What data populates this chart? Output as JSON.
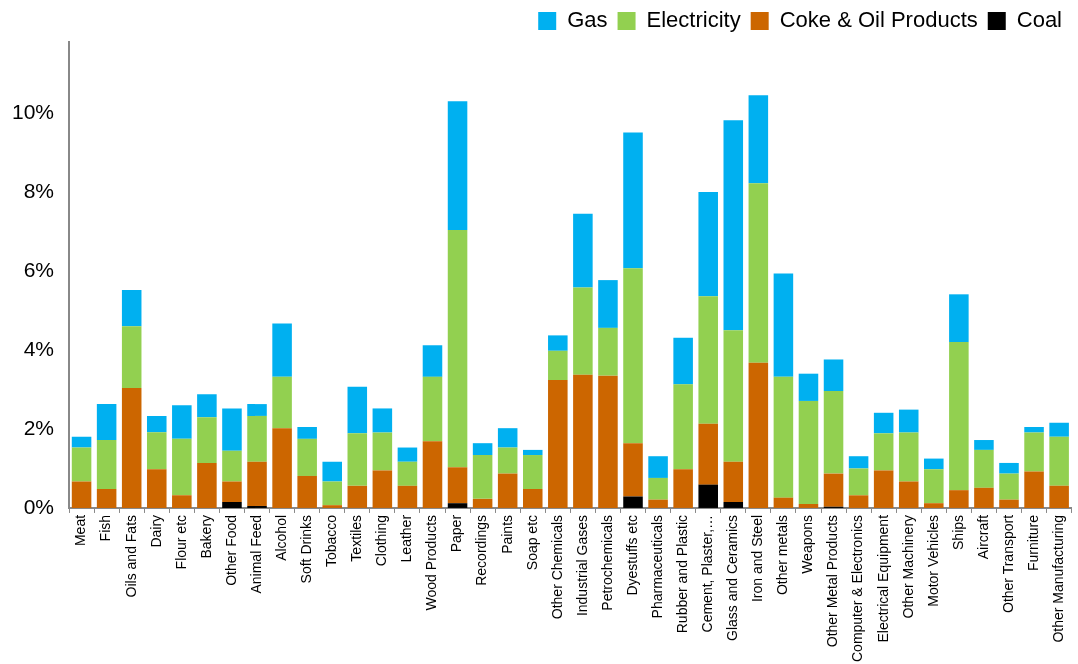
{
  "chart_data": {
    "type": "bar",
    "stacked": true,
    "legend": "top",
    "grid": false,
    "categories": [
      "Meat",
      "Fish",
      "Oils and Fats",
      "Dairy",
      "Flour etc",
      "Bakery",
      "Other Food",
      "Animal Feed",
      "Alcohol",
      "Soft Drinks",
      "Tobacco",
      "Textiles",
      "Clothing",
      "Leather",
      "Wood Products",
      "Paper",
      "Recordings",
      "Paints",
      "Soap etc",
      "Other Chemicals",
      "Industrial Gases",
      "Petrochemicals",
      "Dyestuffs etc",
      "Pharmaceuticals",
      "Rubber and Plastic",
      "Cement, Plaster,…",
      "Glass and Ceramics",
      "Iron and Steel",
      "Other metals",
      "Weapons",
      "Other Metal Products",
      "Computer & Electronics",
      "Electrical Equipment",
      "Other Machinery",
      "Motor Vehicles",
      "Ships",
      "Aircraft",
      "Other Transport",
      "Furniture",
      "Other Manufacturing"
    ],
    "ylim": [
      0,
      11.8
    ],
    "yticks": [
      {
        "value": 0,
        "label": "0%"
      },
      {
        "value": 2,
        "label": "2%"
      },
      {
        "value": 4,
        "label": "4%"
      },
      {
        "value": 6,
        "label": "6%"
      },
      {
        "value": 8,
        "label": "8%"
      },
      {
        "value": 10,
        "label": "10%"
      }
    ],
    "series": [
      {
        "name": "Coal",
        "color": "#000000",
        "values": [
          0,
          0,
          0,
          0,
          0,
          0,
          0.15,
          0.05,
          0,
          0,
          0,
          0,
          0,
          0,
          0,
          0.12,
          0,
          0,
          0,
          0,
          0,
          0,
          0.29,
          0,
          0,
          0.59,
          0.15,
          0,
          0,
          0,
          0.03,
          0,
          0,
          0,
          0,
          0,
          0,
          0,
          0,
          0
        ]
      },
      {
        "name": "Coke & Oil Products",
        "color": "#cc6600",
        "values": [
          0.67,
          0.48,
          3.04,
          0.98,
          0.32,
          1.14,
          0.52,
          1.12,
          2.02,
          0.81,
          0.07,
          0.56,
          0.95,
          0.56,
          1.69,
          0.91,
          0.23,
          0.87,
          0.48,
          3.24,
          3.37,
          3.35,
          1.35,
          0.21,
          0.98,
          1.54,
          1.02,
          3.68,
          0.26,
          0.1,
          0.84,
          0.32,
          0.95,
          0.67,
          0.12,
          0.45,
          0.51,
          0.21,
          0.92,
          0.56
        ]
      },
      {
        "name": "Electricity",
        "color": "#92d050",
        "values": [
          0.86,
          1.24,
          1.56,
          0.94,
          1.43,
          1.16,
          0.78,
          1.16,
          1.3,
          0.94,
          0.6,
          1.33,
          0.96,
          0.61,
          1.63,
          6.01,
          1.11,
          0.66,
          0.86,
          0.74,
          2.21,
          1.21,
          4.43,
          0.55,
          2.15,
          3.23,
          3.33,
          4.54,
          3.06,
          2.61,
          2.09,
          0.68,
          0.94,
          1.24,
          0.86,
          3.75,
          0.96,
          0.66,
          0.99,
          1.24
        ]
      },
      {
        "name": "Gas",
        "color": "#00b0f0",
        "values": [
          0.27,
          0.91,
          0.92,
          0.41,
          0.85,
          0.58,
          1.07,
          0.3,
          1.35,
          0.3,
          0.5,
          1.18,
          0.61,
          0.36,
          0.8,
          3.26,
          0.3,
          0.49,
          0.13,
          0.39,
          1.87,
          1.21,
          3.44,
          0.55,
          1.18,
          2.64,
          5.32,
          2.23,
          2.62,
          0.69,
          0.8,
          0.31,
          0.52,
          0.58,
          0.27,
          1.21,
          0.25,
          0.27,
          0.14,
          0.36
        ]
      }
    ]
  }
}
